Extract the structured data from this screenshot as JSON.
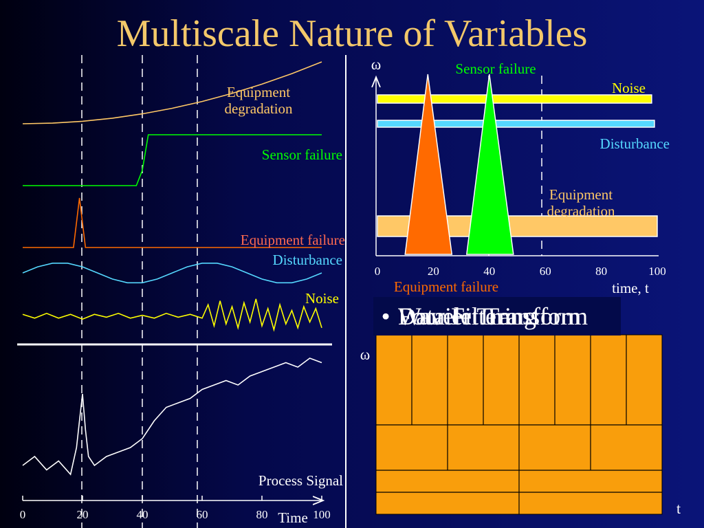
{
  "slide": {
    "title": "Multiscale Nature of Variables"
  },
  "left_chart": {
    "type": "line",
    "x_ticks": [
      "0",
      "20",
      "40",
      "60",
      "80",
      "100"
    ],
    "xlabel": "Time",
    "labels": {
      "equipment_degradation_1": "Equipment",
      "equipment_degradation_2": "degradation",
      "sensor_failure": "Sensor failure",
      "equipment_failure": "Equipment failure",
      "disturbance": "Disturbance",
      "noise": "Noise",
      "process_signal": "Process Signal"
    },
    "dashed_lines_at": [
      20,
      40,
      58
    ]
  },
  "right_chart": {
    "y_symbol": "ω",
    "x_ticks": [
      "0",
      "20",
      "40",
      "60",
      "80",
      "100"
    ],
    "xlabel": "time, t",
    "labels": {
      "sensor_failure": "Sensor failure",
      "noise": "Noise",
      "disturbance": "Disturbance",
      "equipment_degradation_1": "Equipment",
      "equipment_degradation_2": "degradation",
      "equipment_failure": "Equipment failure"
    }
  },
  "wavelet_panel": {
    "y_symbol": "ω",
    "x_symbol": "t"
  },
  "bullets": {
    "items": [
      "Wavelet Transform",
      "Data Filtering",
      "Fourier Transform"
    ]
  },
  "colors": {
    "title": "#f3c86a",
    "degradation": "#ffc866",
    "sensor": "#00ff00",
    "equipment_failure": "#ff6a00",
    "disturbance": "#55d8ff",
    "noise": "#ffff00",
    "signal": "#ffffff",
    "wavelet_fill": "#f99e0c"
  },
  "chart_data": [
    {
      "type": "line",
      "title": "",
      "xlabel": "Time",
      "ylabel": "",
      "x_range": [
        0,
        100
      ],
      "series": [
        {
          "name": "Equipment degradation",
          "x": [
            0,
            10,
            20,
            30,
            40,
            50,
            60,
            70,
            80,
            90,
            100
          ],
          "y": [
            0.0,
            0.01,
            0.04,
            0.09,
            0.16,
            0.25,
            0.36,
            0.49,
            0.64,
            0.81,
            1.0
          ]
        },
        {
          "name": "Sensor failure",
          "x": [
            0,
            38,
            40,
            42,
            100
          ],
          "y": [
            0,
            0,
            0.3,
            1,
            1
          ]
        },
        {
          "name": "Equipment failure",
          "x": [
            0,
            17,
            19,
            21,
            100
          ],
          "y": [
            0,
            0,
            1,
            0,
            0
          ]
        },
        {
          "name": "Disturbance",
          "x": [
            0,
            5,
            10,
            15,
            20,
            25,
            30,
            35,
            40,
            45,
            50,
            55,
            60,
            65,
            70,
            75,
            80,
            85,
            90,
            95,
            100
          ],
          "y": [
            0.0,
            0.59,
            0.95,
            0.95,
            0.59,
            0.0,
            -0.59,
            -0.95,
            -0.95,
            -0.59,
            0.0,
            0.59,
            0.95,
            0.95,
            0.59,
            0.0,
            -0.59,
            -0.95,
            -0.95,
            -0.59,
            0.0
          ]
        },
        {
          "name": "Noise",
          "x": [
            0,
            4,
            8,
            12,
            16,
            20,
            24,
            28,
            32,
            36,
            40,
            44,
            48,
            52,
            56,
            60,
            62,
            64,
            66,
            68,
            70,
            72,
            74,
            76,
            78,
            80,
            82,
            84,
            86,
            88,
            90,
            92,
            94,
            96,
            98,
            100
          ],
          "y": [
            0.1,
            -0.1,
            0.15,
            -0.1,
            0.1,
            -0.15,
            0.1,
            -0.05,
            0.15,
            -0.1,
            0.05,
            -0.1,
            0.15,
            -0.05,
            0.1,
            -0.1,
            0.6,
            -0.5,
            0.8,
            -0.4,
            0.5,
            -0.6,
            0.7,
            -0.3,
            0.9,
            -0.5,
            0.4,
            -0.7,
            0.6,
            -0.4,
            0.3,
            -0.6,
            0.5,
            -0.3,
            0.4,
            -0.6
          ]
        },
        {
          "name": "Process Signal",
          "x": [
            0,
            4,
            8,
            12,
            16,
            18,
            19,
            20,
            21,
            22,
            24,
            28,
            32,
            36,
            40,
            44,
            48,
            52,
            56,
            60,
            64,
            68,
            72,
            76,
            80,
            84,
            88,
            92,
            96,
            100
          ],
          "y": [
            0.1,
            0.2,
            0.05,
            0.15,
            0.0,
            0.3,
            0.6,
            0.9,
            0.5,
            0.2,
            0.1,
            0.2,
            0.25,
            0.3,
            0.4,
            0.6,
            0.75,
            0.8,
            0.85,
            0.95,
            1.0,
            1.05,
            1.0,
            1.1,
            1.15,
            1.2,
            1.25,
            1.2,
            1.3,
            1.25
          ]
        }
      ]
    },
    {
      "type": "bar",
      "title": "",
      "xlabel": "time, t",
      "ylabel": "ω",
      "x_range": [
        0,
        100
      ],
      "series": [
        {
          "name": "Noise",
          "x_start": 0,
          "x_end": 98
        },
        {
          "name": "Disturbance",
          "x_start": 0,
          "x_end": 99
        },
        {
          "name": "Equipment degradation",
          "x_start": 0,
          "x_end": 100
        },
        {
          "name": "Equipment failure",
          "x_center": 18
        },
        {
          "name": "Sensor failure",
          "x_center": 40
        }
      ]
    }
  ]
}
